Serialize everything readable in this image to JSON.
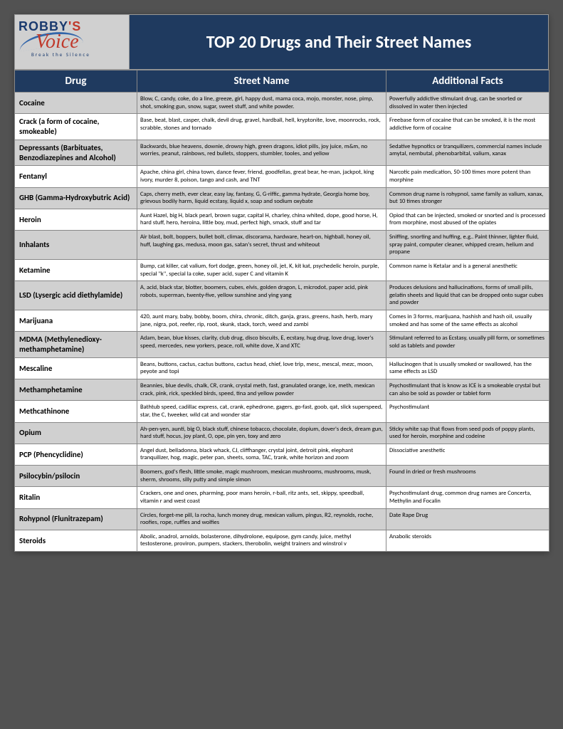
{
  "logo": {
    "brand_top": "ROBBY",
    "apostrophe_s": "'S",
    "brand_script": "Voice",
    "tagline": "Break the Silence"
  },
  "title": "TOP 20 Drugs and Their Street Names",
  "columns": [
    "Drug",
    "Street Name",
    "Additional Facts"
  ],
  "rows": [
    {
      "drug": "Cocaine",
      "street": "Blow, C, candy, coke, do a line, greeze, girl, happy dust, mama coca, mojo, monster, nose, pimp, shot, smoking gun, snow, sugar, sweet stuff, and white powder.",
      "facts": "Powerfully addictive stimulant drug, can be snorted or dissolved in water then injected"
    },
    {
      "drug": "Crack (a form of cocaine, smokeable)",
      "street": "Base, beat, blast, casper, chalk, devil drug, gravel, hardball, hell, kryptonite, love, moonrocks, rock, scrabble, stones and tornado",
      "facts": "Freebase form of cocaine that can be smoked, it is the most addictive form of cocaine"
    },
    {
      "drug": "Depressants (Barbituates, Benzodiazepines and Alcohol)",
      "street": "Backwards, blue heavens, downie, drowsy high, green dragons, idiot pills, joy juice, m&m, no worries, peanut, rainbows, red bullets, stoppers, stumbler, tooles, and yellow",
      "facts": "Sedative hypnotics or tranquilizers,  commercial names include amytal, nembutal, phenobarbital, valium, xanax"
    },
    {
      "drug": "Fentanyl",
      "street": "Apache, china girl, china town, dance fever, friend, goodfellas, great bear, he-man, jackpot, king ivory, murder 8, poison, tango and cash, and TNT",
      "facts": "Narcotic pain medication, 50-100 times more potent than morphine"
    },
    {
      "drug": "GHB (Gamma-Hydroxybutric Acid)",
      "street": "Caps, cherry meth, ever clear, easy lay, fantasy, G, G-riffic, gamma hydrate, Georgia home boy, grievous bodily harm, liquid ecstasy, liquid x, soap and sodium oxybate",
      "facts": "Common drug name is rohypnol, same family as valium, xanax, but 10 times stronger"
    },
    {
      "drug": "Heroin",
      "street": "Aunt Hazel, big H, black pearl, brown sugar, capital H, charley, china whited, dope, good horse, H, hard stuff, hero, heroina, little boy, mud, perfect high, smack, stuff and tar",
      "facts": "Opiod that can be injected, smoked or snorted and is processed from morphine, most abused of the opiates"
    },
    {
      "drug": "Inhalants",
      "street": "Air blast, bolt, boppers, bullet bolt, climax, discorama, hardware, heart-on, highball, honey oil, huff, laughing gas, medusa, moon gas, satan's secret, thrust and whiteout",
      "facts": "Sniffing, snorting and huffing, e.g.. Paint thinner, lighter fluid, spray paint, computer cleaner, whipped cream, helium and propane"
    },
    {
      "drug": "Ketamine",
      "street": "Bump, cat killer, cat valium, fort dodge, green, honey oil, jet, K, kit kat, psychedelic heroin, purple, special \"k\", special la coke, super acid, super C and vitamin K",
      "facts": "Common name is Ketalar and is a general anesthetic"
    },
    {
      "drug": "LSD (Lysergic acid diethylamide)",
      "street": "A, acid, black star, blotter, boomers, cubes, elvis, golden dragon, L, microdot, paper acid, pink robots, superman, twenty-five, yellow sunshine and ying yang",
      "facts": "Produces delusions and hallucinations, forms of small pills, gelatin sheets and liquid that can be dropped onto sugar cubes and powder"
    },
    {
      "drug": "Marijuana",
      "street": "420, aunt mary, baby, bobby, boom, chira, chronic, ditch, ganja, grass, greens, hash, herb, mary jane, nigra, pot, reefer, rip, root, skunk, stack, torch, weed and zambi",
      "facts": "Comes in 3 forms, marijuana, hashish and hash oil, usually smoked and has some of the same effects as alcohol"
    },
    {
      "drug": "MDMA (Methylenedioxy-methamphetamine)",
      "street": "Adam, bean, blue kisses, clarity, club drug, disco biscuits, E, ecstasy, hug drug, love drug, lover's speed, mercedes, new yorkers, peace, roll, white dove, X and XTC",
      "facts": "Stimulant referred to as Ecstasy, usually pill form, or sometimes sold as tablets and powder"
    },
    {
      "drug": "Mescaline",
      "street": "Beans, buttons, cactus, cactus buttons, cactus head, chief, love trip, mesc, mescal, mezc, moon, peyote and topi",
      "facts": "Hallucinogen that is usually smoked or swallowed, has the same effects as LSD"
    },
    {
      "drug": "Methamphetamine",
      "street": "Beannies, blue devils, chalk, CR, crank, crystal meth, fast, granulated orange, ice, meth, mexican crack, pink, rick, speckled birds, speed, tina and yellow powder",
      "facts": "Psychostimulant that is know as ICE is a smokeable crystal but can also be sold as  powder or tablet form"
    },
    {
      "drug": "Methcathinone",
      "street": "Bathtub speed, cadillac express, cat, crank, ephedrone, gagers, go-fast, goob, qat, slick superspeed, star, the C, tweeker, wild cat and wonder star",
      "facts": "Psychostimulant"
    },
    {
      "drug": "Opium",
      "street": "Ah-pen-yen, aunti, big O, black stuff, chinese tobacco, chocolate, dopium, dover's deck, dream gun, hard stuff, hocus, joy plant, O, ope, pin yen, toxy and zero",
      "facts": "Sticky white sap that flows from seed pods of poppy plants, used for heroin, morphine and codeine"
    },
    {
      "drug": "PCP (Phencyclidine)",
      "street": "Angel dust, belladonna, black whack, CJ, cliffhanger, crystal joint, detroit pink, elephant tranquilizer, hog, magic, peter pan, sheets, soma, TAC, trank, white horizon and zoom",
      "facts": "Dissociative anesthetic"
    },
    {
      "drug": "Psilocybin/psilocin",
      "street": "Boomers, god's flesh, little smoke, magic mushroom, mexican mushrooms, mushrooms, musk, sherm, shrooms, silly putty and simple simon",
      "facts": "Found in dried or fresh mushrooms"
    },
    {
      "drug": "Ritalin",
      "street": "Crackers, one and ones, pharming, poor mans heroin, r-ball, ritz ants, set, skippy, speedball, vitamin r and west coast",
      "facts": "Psychostimulant drug, common drug names are Concerta, Methylin and Focalin"
    },
    {
      "drug": "Rohypnol (Flunitrazepam)",
      "street": "Circles, forget-me pill, la rocha, lunch money drug, mexican valium, pingus, R2, reynolds, roche, roofies, rope, ruffles and wolfies",
      "facts": "Date Rape Drug"
    },
    {
      "drug": "Steroids",
      "street": "Abolic, anadrol, arnolds, bolasterone, dihydrolone, equipose, gym candy, juice, methyl testosterone, proviron, pumpers, stackers, therobolin, weight trainers and winstrol v",
      "facts": "Anabolic steroids"
    }
  ]
}
